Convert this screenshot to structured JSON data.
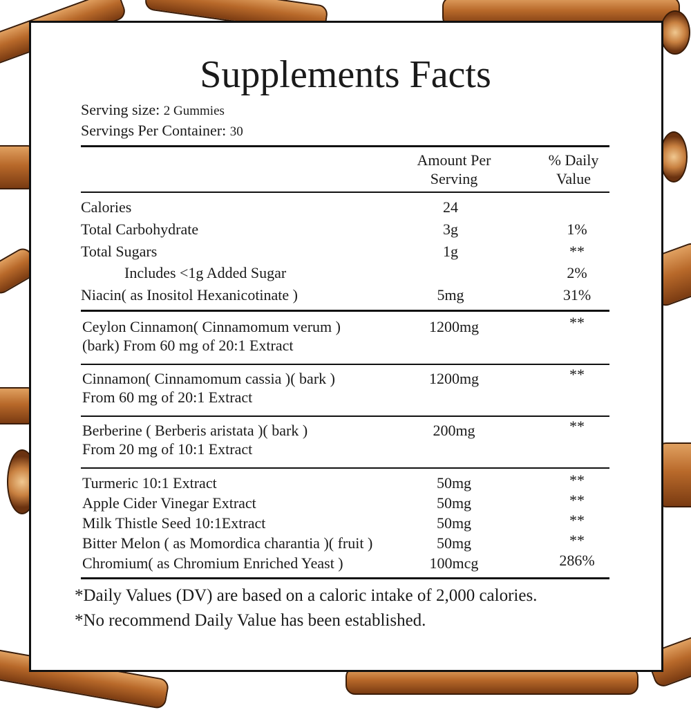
{
  "title": "Supplements Facts",
  "serving_size": {
    "label": "Serving size:",
    "value": "2 Gummies"
  },
  "servings_per_container": {
    "label": "Servings Per Container:",
    "value": "30"
  },
  "headers": {
    "amount_line1": "Amount Per",
    "amount_line2": "Serving",
    "dv_line1": "% Daily",
    "dv_line2": "Value"
  },
  "rows": [
    {
      "name": "Calories",
      "amount": "24",
      "dv": ""
    },
    {
      "name": "Total Carbohydrate",
      "amount": "3g",
      "dv": "1%"
    },
    {
      "name": "Total Sugars",
      "amount": "1g",
      "dv": "**"
    },
    {
      "name": "Includes <1g Added Sugar",
      "amount": "",
      "dv": "2%"
    },
    {
      "name": "Niacin( as Inositol Hexanicotinate )",
      "amount": "5mg",
      "dv": "31%"
    }
  ],
  "blocks": [
    {
      "line1": "Ceylon Cinnamon( Cinnamomum verum )",
      "line2": "(bark) From 60 mg of 20:1 Extract",
      "amount": "1200mg",
      "dv": "**"
    },
    {
      "line1": "Cinnamon( Cinnamomum cassia )( bark )",
      "line2": "From 60 mg of 20:1 Extract",
      "amount": "1200mg",
      "dv": "**"
    },
    {
      "line1": "Berberine ( Berberis aristata )( bark )",
      "line2": "From 20 mg of 10:1 Extract",
      "amount": "200mg",
      "dv": "**"
    }
  ],
  "others": [
    {
      "name": "Turmeric 10:1 Extract",
      "amount": "50mg",
      "dv": "**"
    },
    {
      "name": "Apple Cider Vinegar Extract",
      "amount": "50mg",
      "dv": "**"
    },
    {
      "name": "Milk Thistle Seed 10:1Extract",
      "amount": "50mg",
      "dv": "**"
    },
    {
      "name": "Bitter Melon ( as Momordica charantia )( fruit )",
      "amount": "50mg",
      "dv": "**"
    },
    {
      "name": "Chromium( as Chromium Enriched Yeast )",
      "amount": "100mcg",
      "dv": "286%"
    }
  ],
  "footnotes": [
    "*Daily Values (DV) are based on a caloric intake of 2,000 calories.",
    "*No recommend Daily Value has been established."
  ]
}
